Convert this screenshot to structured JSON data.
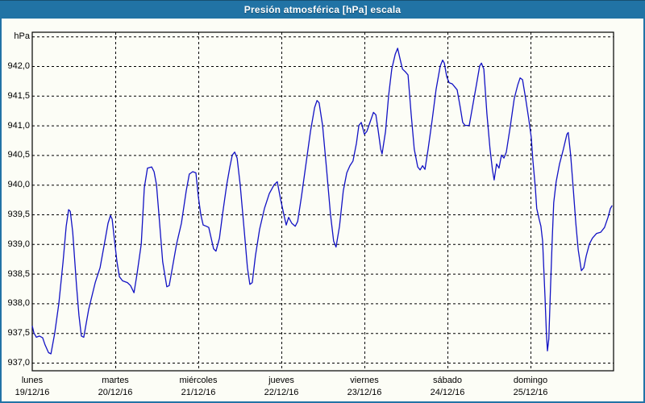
{
  "window": {
    "title": "Presión atmosférica [hPa] escala",
    "colors": {
      "chrome": "#2173A5",
      "chrome_dark": "#174F70",
      "background": "#FCFDF6",
      "line": "#1212C4",
      "grid": "#000000",
      "text": "#000000"
    }
  },
  "chart_data": {
    "type": "line",
    "title": "Presión atmosférica [hPa] escala",
    "unit_label": "hPa",
    "ylim": [
      937.0,
      942.5
    ],
    "ytick_step": 0.5,
    "ytick_labels": [
      "942,0",
      "941,5",
      "941,0",
      "940,5",
      "940,0",
      "939,5",
      "939,0",
      "938,5",
      "938,0",
      "937,5",
      "937,0"
    ],
    "grid": "dashed",
    "legend_position": "none",
    "x_span_hours": 168,
    "x_days": [
      {
        "name": "lunes",
        "date": "19/12/16"
      },
      {
        "name": "martes",
        "date": "20/12/16"
      },
      {
        "name": "miércoles",
        "date": "21/12/16"
      },
      {
        "name": "jueves",
        "date": "22/12/16"
      },
      {
        "name": "viernes",
        "date": "23/12/16"
      },
      {
        "name": "sábado",
        "date": "24/12/16"
      },
      {
        "name": "domingo",
        "date": "25/12/16"
      }
    ],
    "series": [
      {
        "name": "Presión atmosférica (hPa)",
        "points_hours_value": [
          [
            0,
            937.62
          ],
          [
            0.5,
            937.5
          ],
          [
            1.2,
            937.43
          ],
          [
            2.1,
            937.45
          ],
          [
            3,
            937.42
          ],
          [
            3.7,
            937.3
          ],
          [
            4.7,
            937.17
          ],
          [
            5.4,
            937.15
          ],
          [
            6.5,
            937.5
          ],
          [
            7.7,
            938.0
          ],
          [
            8.9,
            938.7
          ],
          [
            9.8,
            939.3
          ],
          [
            10.5,
            939.58
          ],
          [
            11,
            939.55
          ],
          [
            11.7,
            939.2
          ],
          [
            12.8,
            938.3
          ],
          [
            13.5,
            937.8
          ],
          [
            14.2,
            937.45
          ],
          [
            14.9,
            937.43
          ],
          [
            16.3,
            937.9
          ],
          [
            18.2,
            938.35
          ],
          [
            19.6,
            938.6
          ],
          [
            21,
            939.05
          ],
          [
            21.9,
            939.35
          ],
          [
            22.6,
            939.48
          ],
          [
            23.1,
            939.42
          ],
          [
            23.8,
            939.05
          ],
          [
            24.5,
            938.7
          ],
          [
            25.2,
            938.45
          ],
          [
            26.1,
            938.38
          ],
          [
            27.5,
            938.35
          ],
          [
            28.4,
            938.3
          ],
          [
            29.4,
            938.18
          ],
          [
            30.3,
            938.5
          ],
          [
            31.5,
            939.0
          ],
          [
            32.4,
            939.95
          ],
          [
            33.3,
            940.28
          ],
          [
            34.5,
            940.3
          ],
          [
            35.2,
            940.22
          ],
          [
            35.9,
            940.0
          ],
          [
            36.6,
            939.5
          ],
          [
            37.7,
            938.7
          ],
          [
            38.9,
            938.28
          ],
          [
            39.6,
            938.3
          ],
          [
            40.5,
            938.6
          ],
          [
            41.7,
            939.0
          ],
          [
            43.1,
            939.35
          ],
          [
            44.5,
            939.9
          ],
          [
            45.4,
            940.18
          ],
          [
            46.4,
            940.22
          ],
          [
            47.3,
            940.2
          ],
          [
            48,
            939.8
          ],
          [
            48.7,
            939.5
          ],
          [
            49.4,
            939.32
          ],
          [
            50.3,
            939.3
          ],
          [
            51,
            939.28
          ],
          [
            51.7,
            939.1
          ],
          [
            52.4,
            938.92
          ],
          [
            53.1,
            938.88
          ],
          [
            54.1,
            939.1
          ],
          [
            55,
            939.5
          ],
          [
            56.2,
            940.0
          ],
          [
            57.1,
            940.3
          ],
          [
            57.8,
            940.5
          ],
          [
            58.5,
            940.55
          ],
          [
            59.2,
            940.45
          ],
          [
            60.1,
            940.0
          ],
          [
            61.3,
            939.2
          ],
          [
            62.2,
            938.6
          ],
          [
            62.9,
            938.32
          ],
          [
            63.6,
            938.35
          ],
          [
            64.5,
            938.8
          ],
          [
            65.7,
            939.25
          ],
          [
            67.1,
            939.6
          ],
          [
            68.5,
            939.85
          ],
          [
            69.9,
            940.0
          ],
          [
            70.8,
            940.05
          ],
          [
            71.8,
            939.75
          ],
          [
            72.7,
            939.5
          ],
          [
            73.4,
            939.32
          ],
          [
            74.1,
            939.45
          ],
          [
            75,
            939.35
          ],
          [
            76,
            939.3
          ],
          [
            76.7,
            939.38
          ],
          [
            77.8,
            939.8
          ],
          [
            79,
            940.3
          ],
          [
            80.4,
            940.9
          ],
          [
            81.6,
            941.3
          ],
          [
            82.3,
            941.42
          ],
          [
            82.9,
            941.38
          ],
          [
            83.9,
            941.0
          ],
          [
            85,
            940.3
          ],
          [
            86.2,
            939.5
          ],
          [
            87.1,
            939.05
          ],
          [
            87.8,
            938.95
          ],
          [
            88.8,
            939.3
          ],
          [
            89.9,
            939.9
          ],
          [
            90.9,
            940.2
          ],
          [
            91.8,
            940.32
          ],
          [
            92.7,
            940.4
          ],
          [
            93.7,
            940.7
          ],
          [
            94.4,
            941.0
          ],
          [
            95.1,
            941.05
          ],
          [
            96,
            940.85
          ],
          [
            96.7,
            940.9
          ],
          [
            97.6,
            941.05
          ],
          [
            98.6,
            941.22
          ],
          [
            99.3,
            941.18
          ],
          [
            100,
            940.9
          ],
          [
            100.7,
            940.6
          ],
          [
            101.1,
            940.52
          ],
          [
            102.1,
            940.9
          ],
          [
            103,
            941.5
          ],
          [
            103.9,
            941.95
          ],
          [
            104.9,
            942.2
          ],
          [
            105.6,
            942.3
          ],
          [
            106.3,
            942.12
          ],
          [
            107,
            941.95
          ],
          [
            107.9,
            941.9
          ],
          [
            108.6,
            941.85
          ],
          [
            109.5,
            941.2
          ],
          [
            110.4,
            940.6
          ],
          [
            111.4,
            940.3
          ],
          [
            112.1,
            940.25
          ],
          [
            112.8,
            940.32
          ],
          [
            113.5,
            940.26
          ],
          [
            114.4,
            940.6
          ],
          [
            115.6,
            941.1
          ],
          [
            116.7,
            941.6
          ],
          [
            117.9,
            942.0
          ],
          [
            118.6,
            942.1
          ],
          [
            119.1,
            942.05
          ],
          [
            119.8,
            941.82
          ],
          [
            120.5,
            941.72
          ],
          [
            121.4,
            941.7
          ],
          [
            122.1,
            941.65
          ],
          [
            122.8,
            941.6
          ],
          [
            123.7,
            941.3
          ],
          [
            124.4,
            941.05
          ],
          [
            125.1,
            941.0
          ],
          [
            126.3,
            941.0
          ],
          [
            127.2,
            941.3
          ],
          [
            128.4,
            941.7
          ],
          [
            129.3,
            942.0
          ],
          [
            129.8,
            942.05
          ],
          [
            130.5,
            941.95
          ],
          [
            131.4,
            941.2
          ],
          [
            132.3,
            940.6
          ],
          [
            133,
            940.25
          ],
          [
            133.5,
            940.08
          ],
          [
            134.2,
            940.35
          ],
          [
            134.9,
            940.28
          ],
          [
            135.6,
            940.5
          ],
          [
            136.3,
            940.45
          ],
          [
            137,
            940.55
          ],
          [
            138.2,
            941.0
          ],
          [
            139.3,
            941.45
          ],
          [
            140.3,
            941.68
          ],
          [
            141,
            941.8
          ],
          [
            141.7,
            941.77
          ],
          [
            142.6,
            941.45
          ],
          [
            143.5,
            941.1
          ],
          [
            144.2,
            940.8
          ],
          [
            144.7,
            940.4
          ],
          [
            145.4,
            939.95
          ],
          [
            145.8,
            939.6
          ],
          [
            146.5,
            939.42
          ],
          [
            147,
            939.3
          ],
          [
            147.5,
            939.05
          ],
          [
            148.2,
            938.1
          ],
          [
            148.6,
            937.5
          ],
          [
            148.9,
            937.2
          ],
          [
            149.3,
            937.4
          ],
          [
            149.8,
            938.3
          ],
          [
            150.3,
            939.1
          ],
          [
            150.7,
            939.7
          ],
          [
            151.4,
            940.05
          ],
          [
            152.4,
            940.35
          ],
          [
            153.5,
            940.6
          ],
          [
            154.5,
            940.85
          ],
          [
            154.9,
            940.88
          ],
          [
            155.6,
            940.5
          ],
          [
            156.4,
            939.9
          ],
          [
            157.1,
            939.35
          ],
          [
            157.8,
            938.9
          ],
          [
            158.7,
            938.55
          ],
          [
            159.4,
            938.6
          ],
          [
            160.1,
            938.8
          ],
          [
            161,
            939.0
          ],
          [
            161.9,
            939.1
          ],
          [
            163.1,
            939.18
          ],
          [
            164.3,
            939.2
          ],
          [
            165.4,
            939.28
          ],
          [
            166.4,
            939.45
          ],
          [
            167.1,
            939.6
          ],
          [
            167.6,
            939.65
          ]
        ]
      }
    ]
  }
}
